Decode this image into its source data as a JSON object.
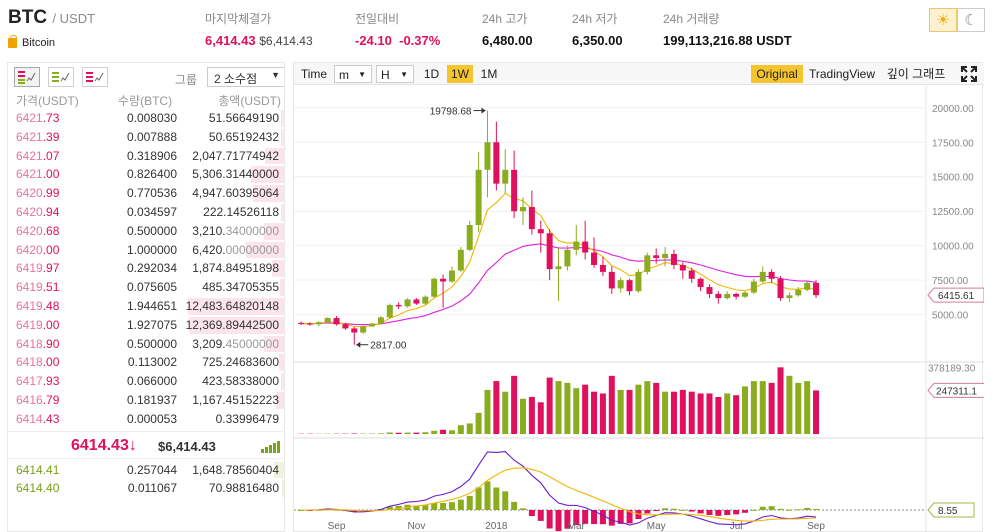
{
  "header": {
    "base": "BTC",
    "quote": "/ USDT",
    "coin_name": "Bitcoin",
    "coin_icon": "lock-icon",
    "stats": [
      {
        "label": "마지막체결가",
        "value": "6,414.43",
        "sub": "$6,414.43",
        "color": "#e0105e"
      },
      {
        "label": "전일대비",
        "value": "-24.10",
        "sub": "-0.37%",
        "color": "#e0105e"
      },
      {
        "label": "24h 고가",
        "value": "6,480.00",
        "color": "#111111"
      },
      {
        "label": "24h 저가",
        "value": "6,350.00",
        "color": "#111111"
      },
      {
        "label": "24h 거래량",
        "value": "199,113,216.88 USDT",
        "color": "#111111"
      }
    ],
    "theme": {
      "light_icon": "sun-icon",
      "dark_icon": "moon-icon",
      "light_glyph": "☀",
      "dark_glyph": "☾"
    }
  },
  "orderbook": {
    "view_icons": [
      "orderbook-both-icon",
      "orderbook-buy-icon",
      "orderbook-sell-icon"
    ],
    "group_label": "그룹",
    "group_value": "2 소수점",
    "columns": {
      "price": "가격(USDT)",
      "qty": "수량(BTC)",
      "total": "총액(USDT)"
    },
    "asks": [
      {
        "p_hi": "6421",
        "p_dk": ".73",
        "qty": "0.008030",
        "tot_a": "51.56649190",
        "tot_b": "",
        "depth": 0.03
      },
      {
        "p_hi": "6421",
        "p_dk": ".39",
        "qty": "0.007888",
        "tot_a": "50.65192432",
        "tot_b": "",
        "depth": 0.03
      },
      {
        "p_hi": "6421",
        "p_dk": ".07",
        "qty": "0.318906",
        "tot_a": "2,047.71774942",
        "tot_b": "",
        "depth": 0.2
      },
      {
        "p_hi": "6421",
        "p_dk": ".00",
        "qty": "0.826400",
        "tot_a": "5,306.31440000",
        "tot_b": "",
        "depth": 0.34
      },
      {
        "p_hi": "6420",
        "p_dk": ".99",
        "qty": "0.770536",
        "tot_a": "4,947.60395064",
        "tot_b": "",
        "depth": 0.32
      },
      {
        "p_hi": "6420",
        "p_dk": ".94",
        "qty": "0.034597",
        "tot_a": "222.14526118",
        "tot_b": "",
        "depth": 0.03
      },
      {
        "p_hi": "6420",
        "p_dk": ".68",
        "qty": "0.500000",
        "tot_a": "3,210.",
        "tot_b": "34000000",
        "depth": 0.21
      },
      {
        "p_hi": "6420",
        "p_dk": ".00",
        "qty": "1.000000",
        "tot_a": "6,420.",
        "tot_b": "00000000",
        "depth": 0.4
      },
      {
        "p_hi": "6419",
        "p_dk": ".97",
        "qty": "0.292034",
        "tot_a": "1,874.84951898",
        "tot_b": "",
        "depth": 0.12
      },
      {
        "p_hi": "6419",
        "p_dk": ".51",
        "qty": "0.075605",
        "tot_a": "485.34705355",
        "tot_b": "",
        "depth": 0.04
      },
      {
        "p_hi": "6419",
        "p_dk": ".48",
        "qty": "1.944651",
        "tot_a": "12,483.64820148",
        "tot_b": "",
        "depth": 1.0
      },
      {
        "p_hi": "6419",
        "p_dk": ".00",
        "qty": "1.927075",
        "tot_a": "12,369.89442500",
        "tot_b": "",
        "depth": 0.99
      },
      {
        "p_hi": "6418",
        "p_dk": ".90",
        "qty": "0.500000",
        "tot_a": "3,209.",
        "tot_b": "45000000",
        "depth": 0.21
      },
      {
        "p_hi": "6418",
        "p_dk": ".00",
        "qty": "0.113002",
        "tot_a": "725.24683600",
        "tot_b": "",
        "depth": 0.05
      },
      {
        "p_hi": "6417",
        "p_dk": ".93",
        "qty": "0.066000",
        "tot_a": "423.58338000",
        "tot_b": "",
        "depth": 0.03
      },
      {
        "p_hi": "6416",
        "p_dk": ".79",
        "qty": "0.181937",
        "tot_a": "1,167.45152223",
        "tot_b": "",
        "depth": 0.08
      },
      {
        "p_hi": "6414",
        "p_dk": ".43",
        "qty": "0.000053",
        "tot_a": "0.33996479",
        "tot_b": "",
        "depth": 0.0
      }
    ],
    "last_price": "6414.43",
    "last_arrow": "↓",
    "last_usd": "$6,414.43",
    "signal_icon": "signal-bars-icon",
    "bids": [
      {
        "price": "6414.41",
        "qty": "0.257044",
        "tot": "1,648.78560404",
        "depth": 0.1
      },
      {
        "price": "6414.40",
        "qty": "0.011067",
        "tot": "70.98816480",
        "depth": 0.02
      }
    ]
  },
  "toolbar": {
    "time_label": "Time",
    "minute_label": "m",
    "hour_label": "H",
    "periods": [
      "1D",
      "1W",
      "1M"
    ],
    "active_period": "1W",
    "views": [
      "Original",
      "TradingView",
      "깊이 그래프"
    ],
    "active_view": "Original",
    "fullscreen_icon": "fullscreen-icon"
  },
  "chart_data": {
    "type": "candlestick",
    "title": "",
    "price_axis": {
      "ticks": [
        5000,
        7500,
        10000,
        12500,
        15000,
        17500,
        20000
      ],
      "tick_labels": [
        "5000.00",
        "7500.00",
        "10000.00",
        "12500.00",
        "15000.00",
        "17500.00",
        "20000.00"
      ]
    },
    "current_price_label": "6415.61",
    "current_price": 6415.61,
    "max_label": "19798.68",
    "max_value": 19798.68,
    "min_label": "2817.00",
    "min_value": 2817.0,
    "x_labels": [
      "Sep",
      "Nov",
      "2018",
      "Mar",
      "May",
      "Jul",
      "Sep"
    ],
    "up_color": "#8aac1e",
    "down_color": "#e0105e",
    "ma_fast_color": "#f2b600",
    "ma_slow_color": "#e020e0",
    "candles": [
      [
        4400,
        4500,
        4250,
        4350
      ],
      [
        4350,
        4450,
        4200,
        4300
      ],
      [
        4300,
        4500,
        4150,
        4450
      ],
      [
        4450,
        4800,
        4350,
        4750
      ],
      [
        4750,
        4900,
        4200,
        4300
      ],
      [
        4300,
        4400,
        3900,
        4000
      ],
      [
        4000,
        4100,
        2817,
        3700
      ],
      [
        3700,
        4200,
        3600,
        4150
      ],
      [
        4150,
        4400,
        4100,
        4350
      ],
      [
        4350,
        4900,
        4300,
        4800
      ],
      [
        4800,
        5800,
        4700,
        5700
      ],
      [
        5700,
        5900,
        5400,
        5600
      ],
      [
        5600,
        6200,
        5500,
        6100
      ],
      [
        6100,
        6200,
        5700,
        5800
      ],
      [
        5800,
        6400,
        5700,
        6300
      ],
      [
        6300,
        7700,
        6200,
        7600
      ],
      [
        7600,
        7900,
        5500,
        7400
      ],
      [
        7400,
        8500,
        7300,
        8200
      ],
      [
        8200,
        9900,
        8100,
        9700
      ],
      [
        9700,
        11800,
        9600,
        11500
      ],
      [
        11500,
        16800,
        11000,
        15500
      ],
      [
        15500,
        19798.68,
        13500,
        17500
      ],
      [
        17500,
        19000,
        14000,
        14500
      ],
      [
        14500,
        17000,
        13800,
        15500
      ],
      [
        15500,
        16900,
        12000,
        12500
      ],
      [
        12500,
        13500,
        11500,
        12800
      ],
      [
        12800,
        14000,
        10800,
        11200
      ],
      [
        11200,
        11800,
        9500,
        10900
      ],
      [
        10900,
        11200,
        7500,
        8300
      ],
      [
        8300,
        9800,
        6000,
        8500
      ],
      [
        8500,
        10000,
        8200,
        9700
      ],
      [
        9700,
        11500,
        9300,
        10300
      ],
      [
        10300,
        11800,
        9000,
        9500
      ],
      [
        9500,
        10600,
        8400,
        8600
      ],
      [
        8600,
        9200,
        7800,
        8100
      ],
      [
        8100,
        8500,
        6500,
        6900
      ],
      [
        6900,
        7700,
        6600,
        7500
      ],
      [
        7500,
        7600,
        6400,
        6700
      ],
      [
        6700,
        8300,
        6600,
        8100
      ],
      [
        8100,
        9500,
        7900,
        9300
      ],
      [
        9300,
        9800,
        8700,
        9100
      ],
      [
        9100,
        9900,
        8500,
        9400
      ],
      [
        9400,
        9700,
        8300,
        8600
      ],
      [
        8600,
        8800,
        7600,
        8200
      ],
      [
        8200,
        8400,
        7300,
        7600
      ],
      [
        7600,
        7700,
        6700,
        7000
      ],
      [
        7000,
        7200,
        6200,
        6500
      ],
      [
        6500,
        6700,
        5800,
        6200
      ],
      [
        6200,
        6700,
        6100,
        6500
      ],
      [
        6500,
        6600,
        6100,
        6300
      ],
      [
        6300,
        6700,
        6200,
        6600
      ],
      [
        6600,
        7600,
        6500,
        7400
      ],
      [
        7400,
        8500,
        7300,
        8100
      ],
      [
        8100,
        8300,
        7300,
        7600
      ],
      [
        7600,
        7800,
        6000,
        6200
      ],
      [
        6200,
        6600,
        5900,
        6400
      ],
      [
        6400,
        7000,
        6300,
        6800
      ],
      [
        6800,
        7400,
        6700,
        7300
      ],
      [
        7300,
        7500,
        6200,
        6415.61
      ]
    ],
    "volume_axis": {
      "tick_label": "378189.30",
      "tick_value": 378189.3,
      "current_label": "247311.1",
      "current_value": 247311.1
    },
    "volume": [
      1500,
      1600,
      1500,
      1800,
      1700,
      1900,
      2800,
      2200,
      2300,
      3500,
      8500,
      7000,
      8000,
      7800,
      10000,
      18000,
      24000,
      21000,
      50000,
      60000,
      120000,
      250000,
      300000,
      240000,
      330000,
      200000,
      210000,
      180000,
      320000,
      300000,
      290000,
      260000,
      280000,
      240000,
      230000,
      330000,
      250000,
      250000,
      280000,
      300000,
      290000,
      240000,
      240000,
      250000,
      240000,
      230000,
      230000,
      210000,
      230000,
      220000,
      270000,
      300000,
      300000,
      290000,
      378189.3,
      330000,
      290000,
      300000,
      247311.1
    ],
    "macd_axis": {
      "current_label": "8.55",
      "current_value": 8.55
    }
  }
}
